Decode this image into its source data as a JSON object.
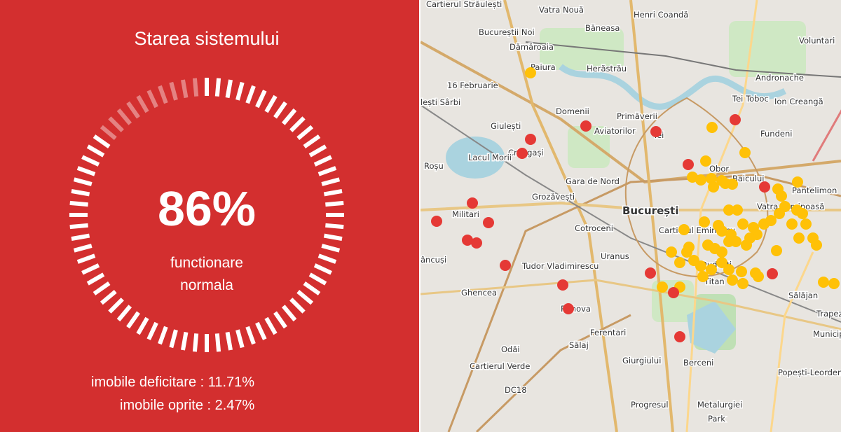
{
  "panel": {
    "title": "Starea sistemului",
    "percent_label": "86%",
    "percent_value": 86,
    "status_line1": "functionare",
    "status_line2": "normala",
    "deficient": "imobile deficitare : 11.71%",
    "stopped": "imobile oprite : 2.47%",
    "background_color": "#d32f2f"
  },
  "map": {
    "marker_colors": {
      "stopped": "#e53935",
      "deficient": "#ffc107"
    },
    "labels": [
      "Cartierul Străulești",
      "Vatra Nouă",
      "Henri Coandă",
      "Bucureștii Noi",
      "Băneasa",
      "Dămăroaia",
      "Voluntari",
      "Paiura",
      "Herăstrău",
      "Andronache",
      "16 Februarie",
      "Tei Toboc",
      "Ion Creangă",
      "lești Sârbi",
      "Domenii",
      "Primăverii",
      "Giulești",
      "Aviatorilor",
      "Tei",
      "Fundeni",
      "Crângași",
      "Lacul Morii",
      "Roșu",
      "Obor",
      "Gara de Nord",
      "Baicului",
      "Grozăvești",
      "Pantelimon",
      "București",
      "Vatra Luminoasă",
      "Militari",
      "Cartierul Eminescu",
      "Cotroceni",
      "Uranus",
      "âncuși",
      "Tudor Vladimirescu",
      "Ghencea",
      "Rahova",
      "Sălăjan",
      "Trapezului",
      "Ferentari",
      "Sălaj",
      "Odăi",
      "Cartierul Verde",
      "Giurgiului",
      "Berceni",
      "Popești-Leordeni",
      "DC18",
      "Progresul",
      "Metalurgiei",
      "Park",
      "Municipiu",
      "Titan",
      "Dudești"
    ]
  }
}
